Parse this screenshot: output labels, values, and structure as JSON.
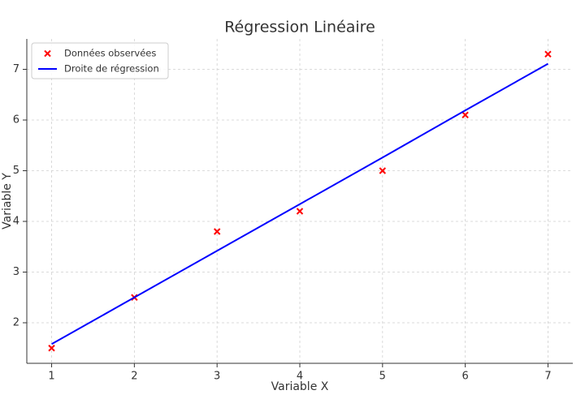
{
  "chart_data": {
    "type": "scatter",
    "title": "Régression Linéaire",
    "x_label": "Variable X",
    "y_label": "Variable Y",
    "x": [
      1,
      2,
      3,
      4,
      5,
      6,
      7
    ],
    "series": [
      {
        "name": "Données observées",
        "type": "scatter",
        "color": "#ff0000",
        "values": [
          1.5,
          2.5,
          3.8,
          4.2,
          5.0,
          6.1,
          7.3
        ]
      },
      {
        "name": "Droite de régression",
        "type": "line",
        "color": "#0000ff",
        "values": [
          1.58,
          2.5,
          3.42,
          4.34,
          5.26,
          6.19,
          7.11
        ]
      }
    ],
    "xlim": [
      0.7,
      7.3
    ],
    "ylim": [
      1.2,
      7.6
    ],
    "xticks": [
      1,
      2,
      3,
      4,
      5,
      6,
      7
    ],
    "yticks": [
      2,
      3,
      4,
      5,
      6,
      7
    ],
    "grid": true,
    "legend": "upper left"
  }
}
